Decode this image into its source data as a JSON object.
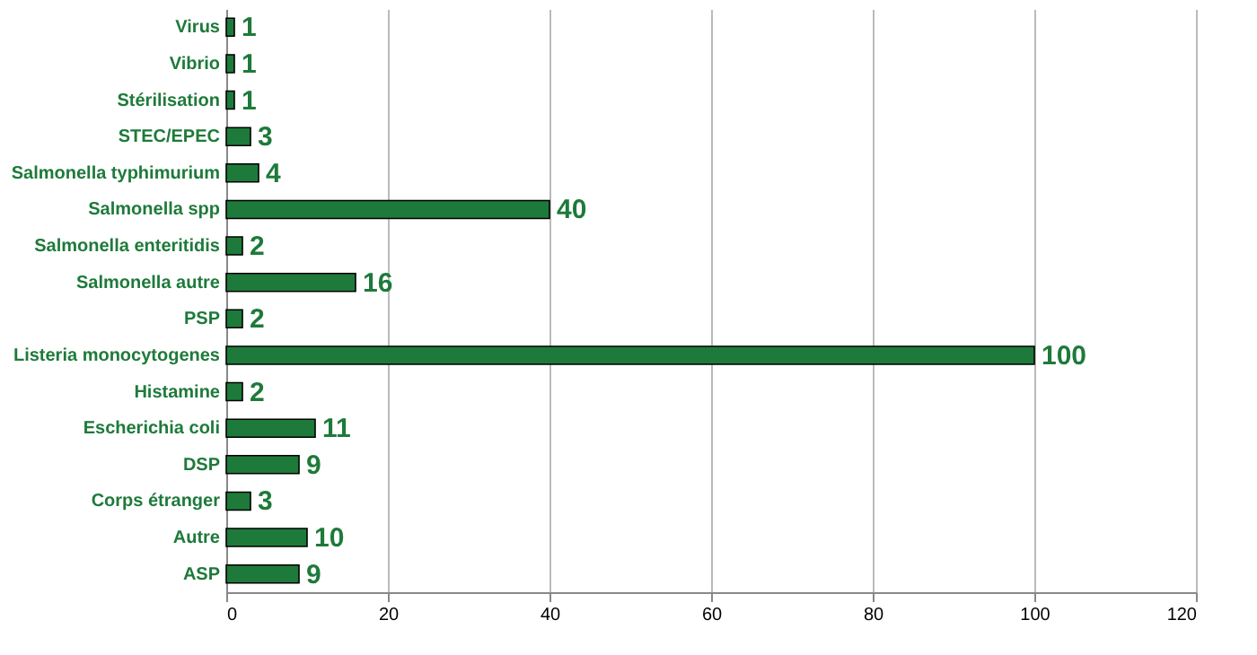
{
  "chart_data": {
    "type": "bar",
    "orientation": "horizontal",
    "categories": [
      "Virus",
      "Vibrio",
      "Stérilisation",
      "STEC/EPEC",
      "Salmonella typhimurium",
      "Salmonella spp",
      "Salmonella enteritidis",
      "Salmonella autre",
      "PSP",
      "Listeria monocytogenes",
      "Histamine",
      "Escherichia coli",
      "DSP",
      "Corps étranger",
      "Autre",
      "ASP"
    ],
    "values": [
      1,
      1,
      1,
      3,
      4,
      40,
      2,
      16,
      2,
      100,
      2,
      11,
      9,
      3,
      10,
      9
    ],
    "color": "#1e7a3a",
    "xlim": [
      0,
      120
    ],
    "xticks": [
      0,
      20,
      40,
      60,
      80,
      100,
      120
    ],
    "grid": "x",
    "data_labels": true
  }
}
